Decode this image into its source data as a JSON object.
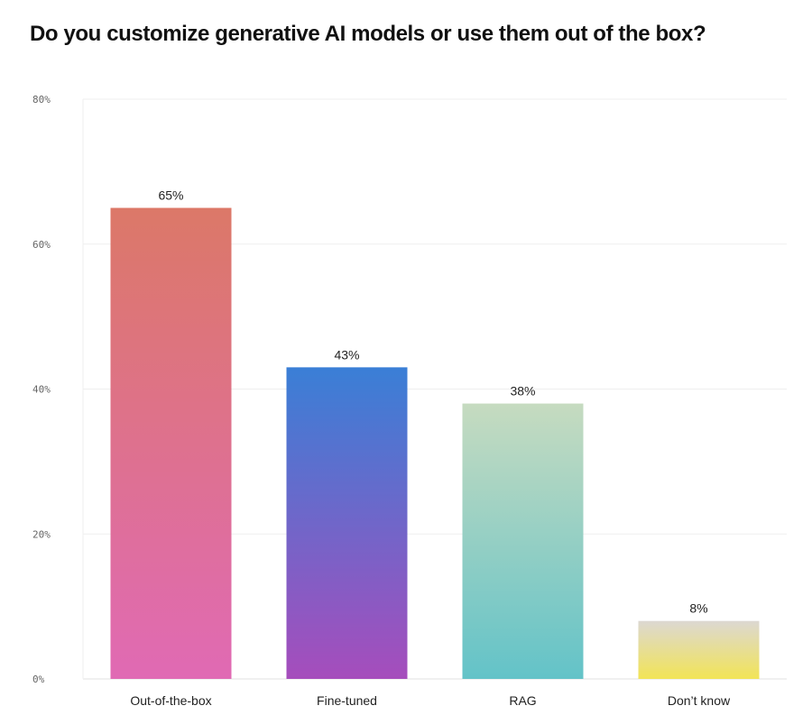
{
  "title": "Do you customize generative AI models or use them out of the box?",
  "chart_data": {
    "type": "bar",
    "categories": [
      "Out-of-the-box",
      "Fine-tuned",
      "RAG",
      "Don’t know"
    ],
    "values": [
      65,
      43,
      38,
      8
    ],
    "value_labels": [
      "65%",
      "43%",
      "38%",
      "8%"
    ],
    "ylim": [
      0,
      80
    ],
    "yticks": [
      0,
      20,
      40,
      60,
      80
    ],
    "ytick_labels": [
      "0%",
      "20%",
      "40%",
      "60%",
      "80%"
    ],
    "grid": true,
    "xlabel": "",
    "ylabel": "",
    "bar_gradients": [
      [
        "#dc7868",
        "#e06ab4"
      ],
      [
        "#3a7fd6",
        "#a64dbc"
      ],
      [
        "#c6dbc0",
        "#63c3c8"
      ],
      [
        "#dcd8d2",
        "#f2e456"
      ]
    ]
  }
}
